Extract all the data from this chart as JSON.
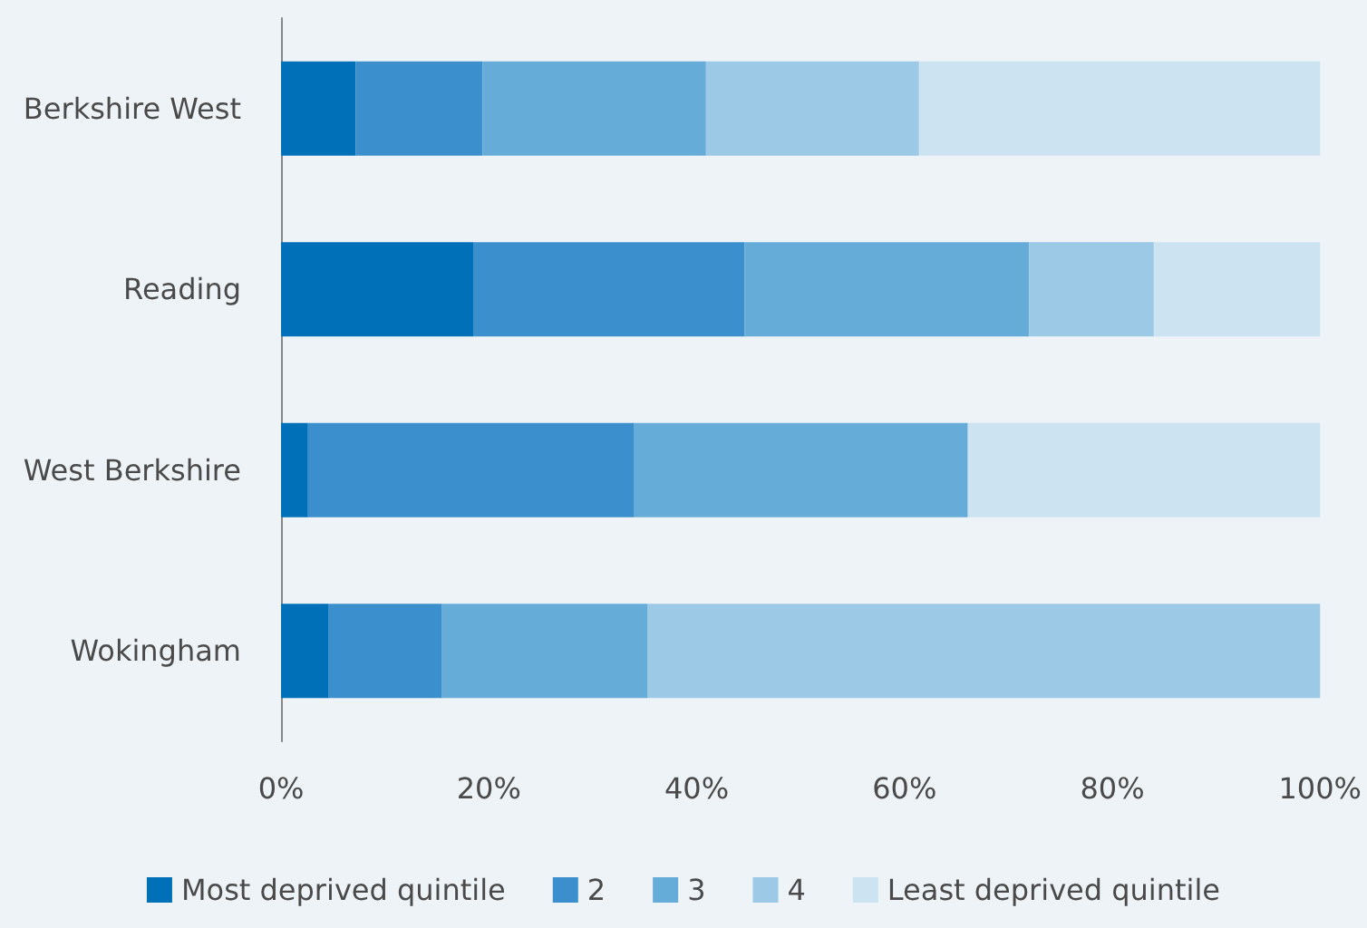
{
  "chart_data": {
    "type": "bar",
    "orientation": "horizontal",
    "stacked": true,
    "categories": [
      "Berkshire West",
      "Reading",
      "West Berkshire",
      "Wokingham"
    ],
    "series": [
      {
        "name": "Most deprived quintile",
        "color": "#0070b8",
        "values": [
          7.2,
          18.5,
          2.6,
          4.6
        ]
      },
      {
        "name": "2",
        "color": "#3a8fcc",
        "values": [
          12.2,
          26.1,
          31.4,
          10.9
        ]
      },
      {
        "name": "3",
        "color": "#66acd8",
        "values": [
          21.5,
          27.4,
          32.1,
          19.8
        ]
      },
      {
        "name": "4",
        "color": "#9cc9e6",
        "values": [
          20.5,
          12.0,
          0,
          64.7
        ]
      },
      {
        "name": "Least deprived quintile",
        "color": "#cce3f2",
        "values": [
          38.6,
          16.0,
          33.9,
          0
        ]
      }
    ],
    "xlim": [
      0,
      100
    ],
    "xticks": [
      {
        "value": 0,
        "label": "0%"
      },
      {
        "value": 20,
        "label": "20%"
      },
      {
        "value": 40,
        "label": "40%"
      },
      {
        "value": 60,
        "label": "60%"
      },
      {
        "value": 80,
        "label": "80%"
      },
      {
        "value": 100,
        "label": "100%"
      }
    ],
    "grid": false,
    "legend": "bottom"
  }
}
